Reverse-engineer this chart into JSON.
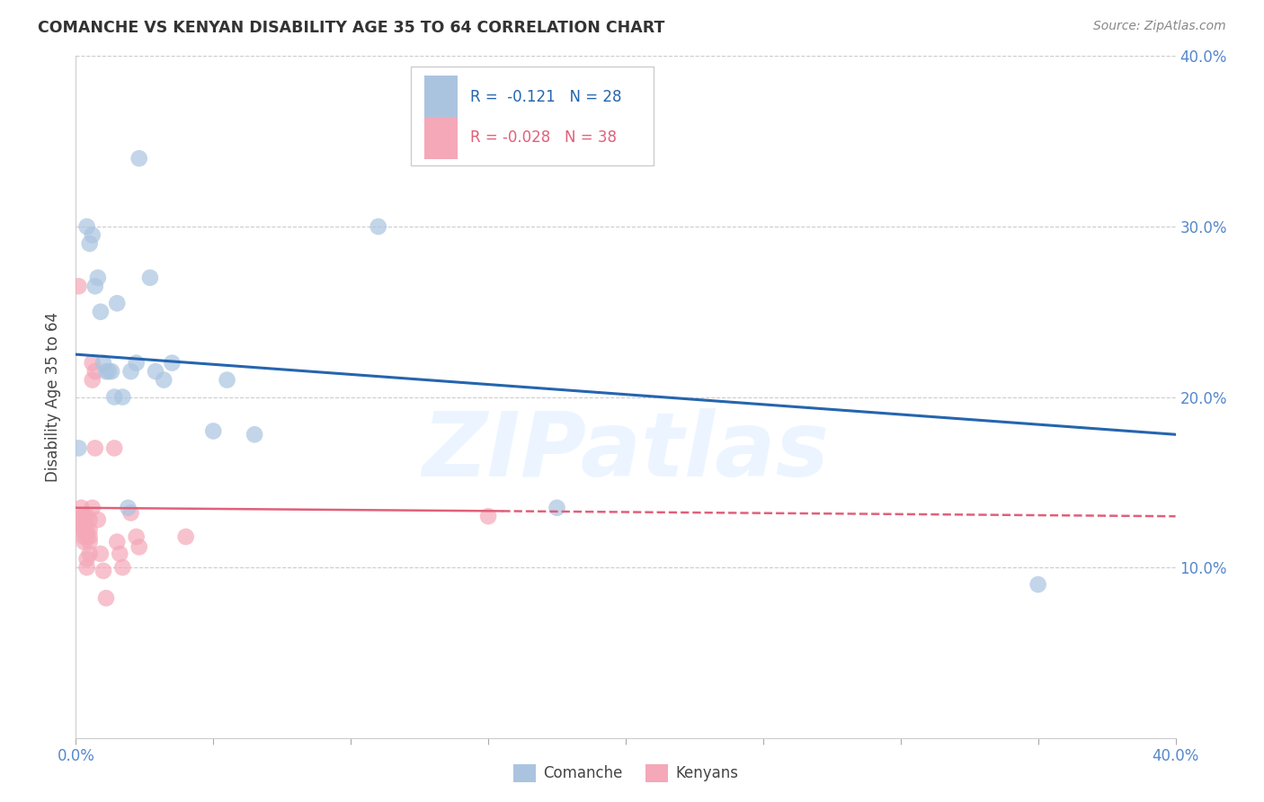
{
  "title": "COMANCHE VS KENYAN DISABILITY AGE 35 TO 64 CORRELATION CHART",
  "source": "Source: ZipAtlas.com",
  "ylabel": "Disability Age 35 to 64",
  "xlim": [
    0.0,
    0.4
  ],
  "ylim": [
    0.0,
    0.4
  ],
  "background_color": "#ffffff",
  "watermark": "ZIPatlas",
  "comanche_color": "#aac4e0",
  "kenyan_color": "#f4a8b8",
  "comanche_line_color": "#2565ae",
  "kenyan_line_color": "#e0607a",
  "legend_R_comanche": "-0.121",
  "legend_N_comanche": "28",
  "legend_R_kenyan": "-0.028",
  "legend_N_kenyan": "38",
  "comanche_scatter": [
    [
      0.001,
      0.17
    ],
    [
      0.004,
      0.3
    ],
    [
      0.005,
      0.29
    ],
    [
      0.006,
      0.295
    ],
    [
      0.007,
      0.265
    ],
    [
      0.008,
      0.27
    ],
    [
      0.009,
      0.25
    ],
    [
      0.01,
      0.22
    ],
    [
      0.011,
      0.215
    ],
    [
      0.012,
      0.215
    ],
    [
      0.013,
      0.215
    ],
    [
      0.014,
      0.2
    ],
    [
      0.015,
      0.255
    ],
    [
      0.017,
      0.2
    ],
    [
      0.019,
      0.135
    ],
    [
      0.02,
      0.215
    ],
    [
      0.022,
      0.22
    ],
    [
      0.023,
      0.34
    ],
    [
      0.027,
      0.27
    ],
    [
      0.029,
      0.215
    ],
    [
      0.032,
      0.21
    ],
    [
      0.035,
      0.22
    ],
    [
      0.05,
      0.18
    ],
    [
      0.055,
      0.21
    ],
    [
      0.065,
      0.178
    ],
    [
      0.11,
      0.3
    ],
    [
      0.175,
      0.135
    ],
    [
      0.35,
      0.09
    ]
  ],
  "kenyan_scatter": [
    [
      0.001,
      0.265
    ],
    [
      0.002,
      0.135
    ],
    [
      0.002,
      0.13
    ],
    [
      0.002,
      0.125
    ],
    [
      0.002,
      0.122
    ],
    [
      0.003,
      0.13
    ],
    [
      0.003,
      0.128
    ],
    [
      0.003,
      0.122
    ],
    [
      0.003,
      0.118
    ],
    [
      0.003,
      0.115
    ],
    [
      0.004,
      0.13
    ],
    [
      0.004,
      0.122
    ],
    [
      0.004,
      0.118
    ],
    [
      0.004,
      0.105
    ],
    [
      0.004,
      0.1
    ],
    [
      0.005,
      0.128
    ],
    [
      0.005,
      0.122
    ],
    [
      0.005,
      0.118
    ],
    [
      0.005,
      0.115
    ],
    [
      0.005,
      0.108
    ],
    [
      0.006,
      0.22
    ],
    [
      0.006,
      0.21
    ],
    [
      0.006,
      0.135
    ],
    [
      0.007,
      0.215
    ],
    [
      0.007,
      0.17
    ],
    [
      0.008,
      0.128
    ],
    [
      0.009,
      0.108
    ],
    [
      0.01,
      0.098
    ],
    [
      0.011,
      0.082
    ],
    [
      0.014,
      0.17
    ],
    [
      0.015,
      0.115
    ],
    [
      0.016,
      0.108
    ],
    [
      0.017,
      0.1
    ],
    [
      0.02,
      0.132
    ],
    [
      0.022,
      0.118
    ],
    [
      0.023,
      0.112
    ],
    [
      0.04,
      0.118
    ],
    [
      0.15,
      0.13
    ]
  ],
  "kenyan_line_x_solid_end": 0.155,
  "kenyan_line_start_y": 0.135,
  "kenyan_line_end_y": 0.13,
  "comanche_line_start_y": 0.225,
  "comanche_line_end_y": 0.178
}
